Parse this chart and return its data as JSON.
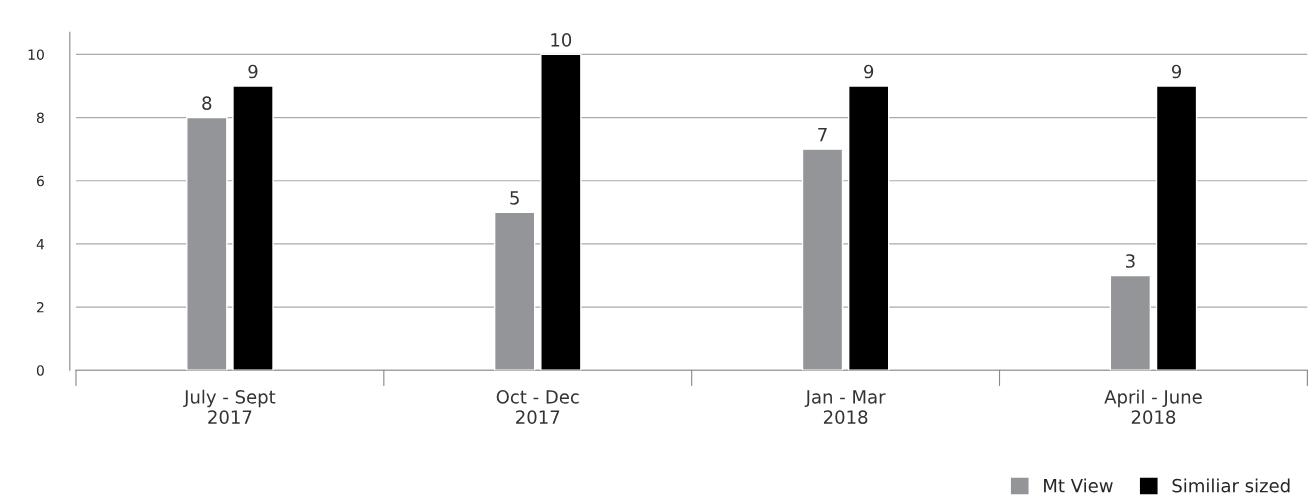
{
  "chart_data": {
    "type": "bar",
    "categories": [
      "July - Sept\n2017",
      "Oct - Dec\n2017",
      "Jan - Mar\n2018",
      "April - June\n2018"
    ],
    "series": [
      {
        "name": "Mt View",
        "color": "#939598",
        "values": [
          8,
          5,
          7,
          3
        ]
      },
      {
        "name": "Similiar sized",
        "color": "#000000",
        "values": [
          9,
          10,
          9,
          9
        ]
      }
    ],
    "ylim": [
      0,
      10.7
    ],
    "yticks": [
      0,
      2,
      4,
      6,
      8,
      10
    ],
    "grid": "y",
    "legend": "bottom right",
    "data_labels": true
  }
}
